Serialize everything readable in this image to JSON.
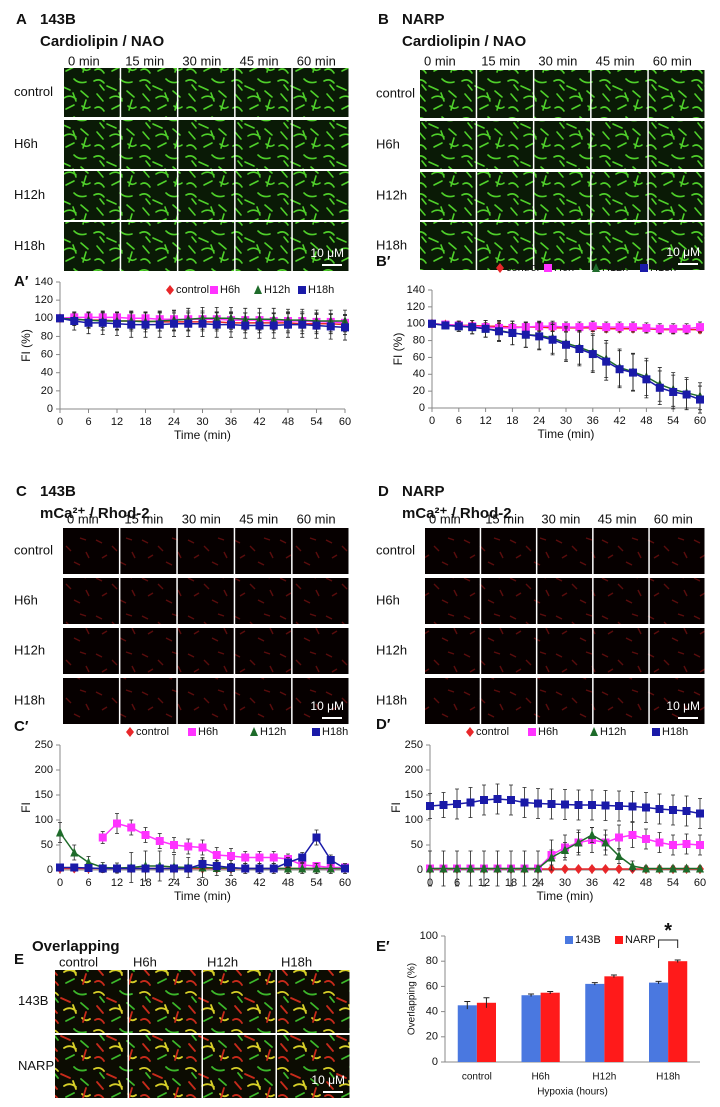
{
  "panels": {
    "A": {
      "letter": "A",
      "cell": "143B",
      "stain": "Cardiolipin / NAO",
      "times": [
        "0 min",
        "15 min",
        "30 min",
        "45 min",
        "60 min"
      ],
      "rows": [
        "control",
        "H6h",
        "H12h",
        "H18h"
      ],
      "scale": "10 μM"
    },
    "B": {
      "letter": "B",
      "cell": "NARP",
      "stain": "Cardiolipin / NAO",
      "times": [
        "0 min",
        "15 min",
        "30 min",
        "45 min",
        "60 min"
      ],
      "rows": [
        "control",
        "H6h",
        "H12h",
        "H18h"
      ],
      "scale": "10 μM"
    },
    "C": {
      "letter": "C",
      "cell": "143B",
      "stain": "mCa²⁺ / Rhod-2",
      "times": [
        "0 min",
        "15 min",
        "30 min",
        "45 min",
        "60 min"
      ],
      "rows": [
        "control",
        "H6h",
        "H12h",
        "H18h"
      ],
      "scale": "10 μM"
    },
    "D": {
      "letter": "D",
      "cell": "NARP",
      "stain": "mCa²⁺ / Rhod-2",
      "times": [
        "0 min",
        "15 min",
        "30 min",
        "45 min",
        "60 min"
      ],
      "rows": [
        "control",
        "H6h",
        "H12h",
        "H18h"
      ],
      "scale": "10 μM"
    },
    "E": {
      "letter": "E",
      "title": "Overlapping",
      "columns": [
        "control",
        "H6h",
        "H12h",
        "H18h"
      ],
      "rows": [
        "143B",
        "NARP"
      ],
      "scale": "10 μM"
    }
  },
  "chart_data": [
    {
      "type": "line",
      "panel": "A′",
      "xlabel": "Time (min)",
      "ylabel": "FI (%)",
      "legend": "top",
      "x": [
        0,
        3,
        6,
        9,
        12,
        15,
        18,
        21,
        24,
        27,
        30,
        33,
        36,
        39,
        42,
        45,
        48,
        51,
        54,
        57,
        60
      ],
      "xlim": [
        0,
        60
      ],
      "xticks": [
        0,
        6,
        12,
        18,
        24,
        30,
        36,
        42,
        48,
        54,
        60
      ],
      "ylim": [
        0,
        140
      ],
      "yticks": [
        0,
        20,
        40,
        60,
        80,
        100,
        120,
        140
      ],
      "series": [
        {
          "name": "control",
          "color": "#e8272a",
          "marker": "diamond",
          "values": [
            100,
            99,
            98,
            98,
            97,
            97,
            97,
            96,
            96,
            96,
            96,
            96,
            95,
            95,
            95,
            95,
            95,
            94,
            94,
            94,
            93
          ],
          "errors": [
            0,
            6,
            8,
            8,
            9,
            9,
            9,
            10,
            10,
            10,
            10,
            10,
            10,
            11,
            11,
            11,
            11,
            11,
            11,
            11,
            11
          ]
        },
        {
          "name": "H6h",
          "color": "#ff33ff",
          "marker": "square",
          "values": [
            100,
            101,
            101,
            101,
            101,
            100,
            100,
            99,
            99,
            99,
            99,
            99,
            98,
            98,
            98,
            97,
            97,
            97,
            96,
            96,
            95
          ],
          "errors": [
            0,
            4,
            5,
            5,
            6,
            6,
            6,
            7,
            7,
            7,
            7,
            8,
            8,
            8,
            8,
            8,
            8,
            8,
            8,
            8,
            8
          ]
        },
        {
          "name": "H12h",
          "color": "#1e6b2a",
          "marker": "triangle",
          "values": [
            100,
            99,
            98,
            97,
            97,
            97,
            96,
            97,
            98,
            99,
            100,
            100,
            100,
            99,
            99,
            99,
            98,
            98,
            97,
            97,
            97
          ],
          "errors": [
            0,
            7,
            9,
            10,
            10,
            11,
            11,
            11,
            11,
            12,
            12,
            12,
            12,
            12,
            12,
            12,
            12,
            12,
            12,
            12,
            12
          ]
        },
        {
          "name": "H18h",
          "color": "#1a1aa8",
          "marker": "square",
          "values": [
            100,
            97,
            95,
            95,
            94,
            93,
            93,
            93,
            94,
            94,
            94,
            93,
            93,
            92,
            92,
            92,
            93,
            93,
            92,
            91,
            90
          ],
          "errors": [
            0,
            10,
            12,
            13,
            13,
            14,
            14,
            14,
            14,
            14,
            14,
            14,
            14,
            14,
            14,
            14,
            14,
            14,
            14,
            14,
            14
          ]
        }
      ]
    },
    {
      "type": "line",
      "panel": "B′",
      "xlabel": "Time (min)",
      "ylabel": "FI (%)",
      "legend": "top",
      "x": [
        0,
        3,
        6,
        9,
        12,
        15,
        18,
        21,
        24,
        27,
        30,
        33,
        36,
        39,
        42,
        45,
        48,
        51,
        54,
        57,
        60
      ],
      "xlim": [
        0,
        60
      ],
      "xticks": [
        0,
        6,
        12,
        18,
        24,
        30,
        36,
        42,
        48,
        54,
        60
      ],
      "ylim": [
        0,
        140
      ],
      "yticks": [
        0,
        20,
        40,
        60,
        80,
        100,
        120,
        140
      ],
      "series": [
        {
          "name": "control",
          "color": "#e8272a",
          "marker": "diamond",
          "values": [
            100,
            99,
            98,
            98,
            97,
            97,
            96,
            96,
            96,
            95,
            95,
            95,
            95,
            94,
            94,
            94,
            94,
            93,
            93,
            93,
            93
          ],
          "errors": [
            0,
            2,
            3,
            3,
            3,
            4,
            4,
            4,
            4,
            4,
            4,
            4,
            4,
            4,
            4,
            4,
            4,
            4,
            4,
            4,
            4
          ]
        },
        {
          "name": "H6h",
          "color": "#ff33ff",
          "marker": "square",
          "values": [
            100,
            99,
            98,
            97,
            96,
            95,
            95,
            96,
            97,
            97,
            96,
            96,
            97,
            96,
            96,
            96,
            95,
            94,
            94,
            94,
            96
          ],
          "errors": [
            0,
            3,
            4,
            4,
            5,
            5,
            5,
            5,
            6,
            6,
            6,
            6,
            6,
            6,
            6,
            6,
            6,
            6,
            6,
            6,
            6
          ]
        },
        {
          "name": "H12h",
          "color": "#1e6b2a",
          "marker": "triangle",
          "values": [
            100,
            98,
            97,
            96,
            94,
            92,
            89,
            87,
            86,
            83,
            77,
            72,
            66,
            58,
            48,
            43,
            37,
            28,
            22,
            18,
            14
          ],
          "errors": [
            0,
            4,
            6,
            8,
            10,
            12,
            14,
            15,
            16,
            18,
            20,
            20,
            22,
            22,
            22,
            22,
            22,
            20,
            20,
            18,
            16
          ]
        },
        {
          "name": "H18h",
          "color": "#1a1aa8",
          "marker": "square",
          "values": [
            100,
            98,
            97,
            96,
            94,
            91,
            89,
            87,
            85,
            81,
            75,
            70,
            64,
            55,
            46,
            42,
            34,
            24,
            19,
            16,
            10
          ],
          "errors": [
            0,
            4,
            6,
            8,
            10,
            12,
            14,
            15,
            16,
            18,
            20,
            20,
            22,
            22,
            22,
            22,
            22,
            20,
            20,
            18,
            16
          ]
        }
      ]
    },
    {
      "type": "line",
      "panel": "C′",
      "xlabel": "Time (min)",
      "ylabel": "FI",
      "legend": "top",
      "x": [
        0,
        3,
        6,
        9,
        12,
        15,
        18,
        21,
        24,
        27,
        30,
        33,
        36,
        39,
        42,
        45,
        48,
        51,
        54,
        57,
        60
      ],
      "xlim": [
        0,
        60
      ],
      "xticks": [
        0,
        6,
        12,
        18,
        24,
        30,
        36,
        42,
        48,
        54,
        60
      ],
      "ylim": [
        0,
        250
      ],
      "yticks": [
        0,
        50,
        100,
        150,
        200,
        250
      ],
      "series": [
        {
          "name": "control",
          "color": "#e8272a",
          "marker": "diamond",
          "values": [
            3,
            3,
            3,
            3,
            3,
            3,
            3,
            3,
            3,
            3,
            3,
            3,
            3,
            3,
            3,
            3,
            3,
            3,
            3,
            3,
            3
          ]
        },
        {
          "name": "H6h",
          "color": "#ff33ff",
          "marker": "square",
          "values": [
            null,
            null,
            null,
            65,
            93,
            85,
            70,
            58,
            50,
            47,
            45,
            30,
            28,
            25,
            25,
            25,
            22,
            10,
            8,
            5,
            5
          ],
          "errors": [
            null,
            null,
            null,
            12,
            20,
            15,
            15,
            15,
            15,
            15,
            15,
            15,
            15,
            12,
            12,
            12,
            10,
            8,
            6,
            5,
            5
          ]
        },
        {
          "name": "H12h",
          "color": "#1e6b2a",
          "marker": "triangle",
          "values": [
            75,
            35,
            15,
            5,
            4,
            5,
            8,
            8,
            6,
            5,
            5,
            4,
            4,
            3,
            3,
            3,
            3,
            3,
            3,
            3,
            3
          ],
          "errors": [
            20,
            15,
            12,
            10,
            10,
            30,
            30,
            30,
            25,
            20,
            20,
            15,
            15,
            10,
            10,
            10,
            10,
            10,
            10,
            10,
            10
          ]
        },
        {
          "name": "H18h",
          "color": "#1a1aa8",
          "marker": "square",
          "values": [
            5,
            5,
            4,
            3,
            3,
            3,
            3,
            3,
            3,
            3,
            12,
            8,
            5,
            3,
            3,
            3,
            15,
            25,
            65,
            20,
            3
          ],
          "errors": [
            5,
            5,
            5,
            5,
            5,
            5,
            5,
            5,
            5,
            5,
            10,
            10,
            8,
            5,
            5,
            5,
            10,
            10,
            15,
            10,
            5
          ]
        }
      ]
    },
    {
      "type": "line",
      "panel": "D′",
      "xlabel": "Time (min)",
      "ylabel": "FI",
      "legend": "top",
      "x": [
        0,
        3,
        6,
        9,
        12,
        15,
        18,
        21,
        24,
        27,
        30,
        33,
        36,
        39,
        42,
        45,
        48,
        51,
        54,
        57,
        60
      ],
      "xlim": [
        0,
        60
      ],
      "xticks": [
        0,
        6,
        12,
        18,
        24,
        30,
        36,
        42,
        48,
        54,
        60
      ],
      "ylim": [
        0,
        250
      ],
      "yticks": [
        0,
        50,
        100,
        150,
        200,
        250
      ],
      "series": [
        {
          "name": "control",
          "color": "#e8272a",
          "marker": "diamond",
          "values": [
            2,
            2,
            2,
            2,
            2,
            2,
            2,
            2,
            2,
            2,
            2,
            2,
            2,
            2,
            2,
            2,
            2,
            2,
            2,
            2,
            2
          ]
        },
        {
          "name": "H6h",
          "color": "#ff33ff",
          "marker": "square",
          "values": [
            3,
            3,
            3,
            3,
            3,
            3,
            3,
            3,
            3,
            30,
            45,
            55,
            60,
            55,
            65,
            70,
            62,
            55,
            50,
            52,
            50
          ],
          "errors": [
            35,
            35,
            35,
            35,
            35,
            35,
            35,
            35,
            35,
            30,
            25,
            25,
            25,
            25,
            25,
            25,
            20,
            20,
            20,
            20,
            20
          ]
        },
        {
          "name": "H12h",
          "color": "#1e6b2a",
          "marker": "triangle",
          "values": [
            3,
            3,
            3,
            3,
            3,
            3,
            3,
            3,
            3,
            25,
            40,
            55,
            70,
            55,
            28,
            8,
            3,
            3,
            3,
            3,
            3
          ],
          "errors": [
            5,
            5,
            5,
            5,
            5,
            5,
            5,
            5,
            5,
            15,
            15,
            20,
            15,
            15,
            15,
            10,
            5,
            5,
            5,
            5,
            5
          ]
        },
        {
          "name": "H18h",
          "color": "#1a1aa8",
          "marker": "square",
          "values": [
            128,
            130,
            132,
            135,
            140,
            142,
            140,
            135,
            133,
            132,
            131,
            130,
            130,
            129,
            128,
            127,
            125,
            122,
            120,
            118,
            113
          ],
          "errors": [
            25,
            25,
            30,
            30,
            30,
            30,
            30,
            30,
            30,
            30,
            30,
            30,
            30,
            30,
            30,
            30,
            30,
            30,
            30,
            30,
            30
          ]
        }
      ]
    },
    {
      "type": "bar",
      "panel": "E′",
      "xlabel": "Hypoxia (hours)",
      "ylabel": "Overlapping (%)",
      "legend": "top",
      "annotation": "*",
      "categories": [
        "control",
        "H6h",
        "H12h",
        "H18h"
      ],
      "ylim": [
        0,
        100
      ],
      "yticks": [
        0,
        20,
        40,
        60,
        80,
        100
      ],
      "series": [
        {
          "name": "143B",
          "color": "#4a78e0",
          "values": [
            45,
            53,
            62,
            63
          ],
          "errors": [
            3,
            1,
            1,
            1
          ]
        },
        {
          "name": "NARP",
          "color": "#ff1a1a",
          "values": [
            47,
            55,
            68,
            80
          ],
          "errors": [
            4,
            1,
            1,
            1
          ]
        }
      ]
    }
  ]
}
